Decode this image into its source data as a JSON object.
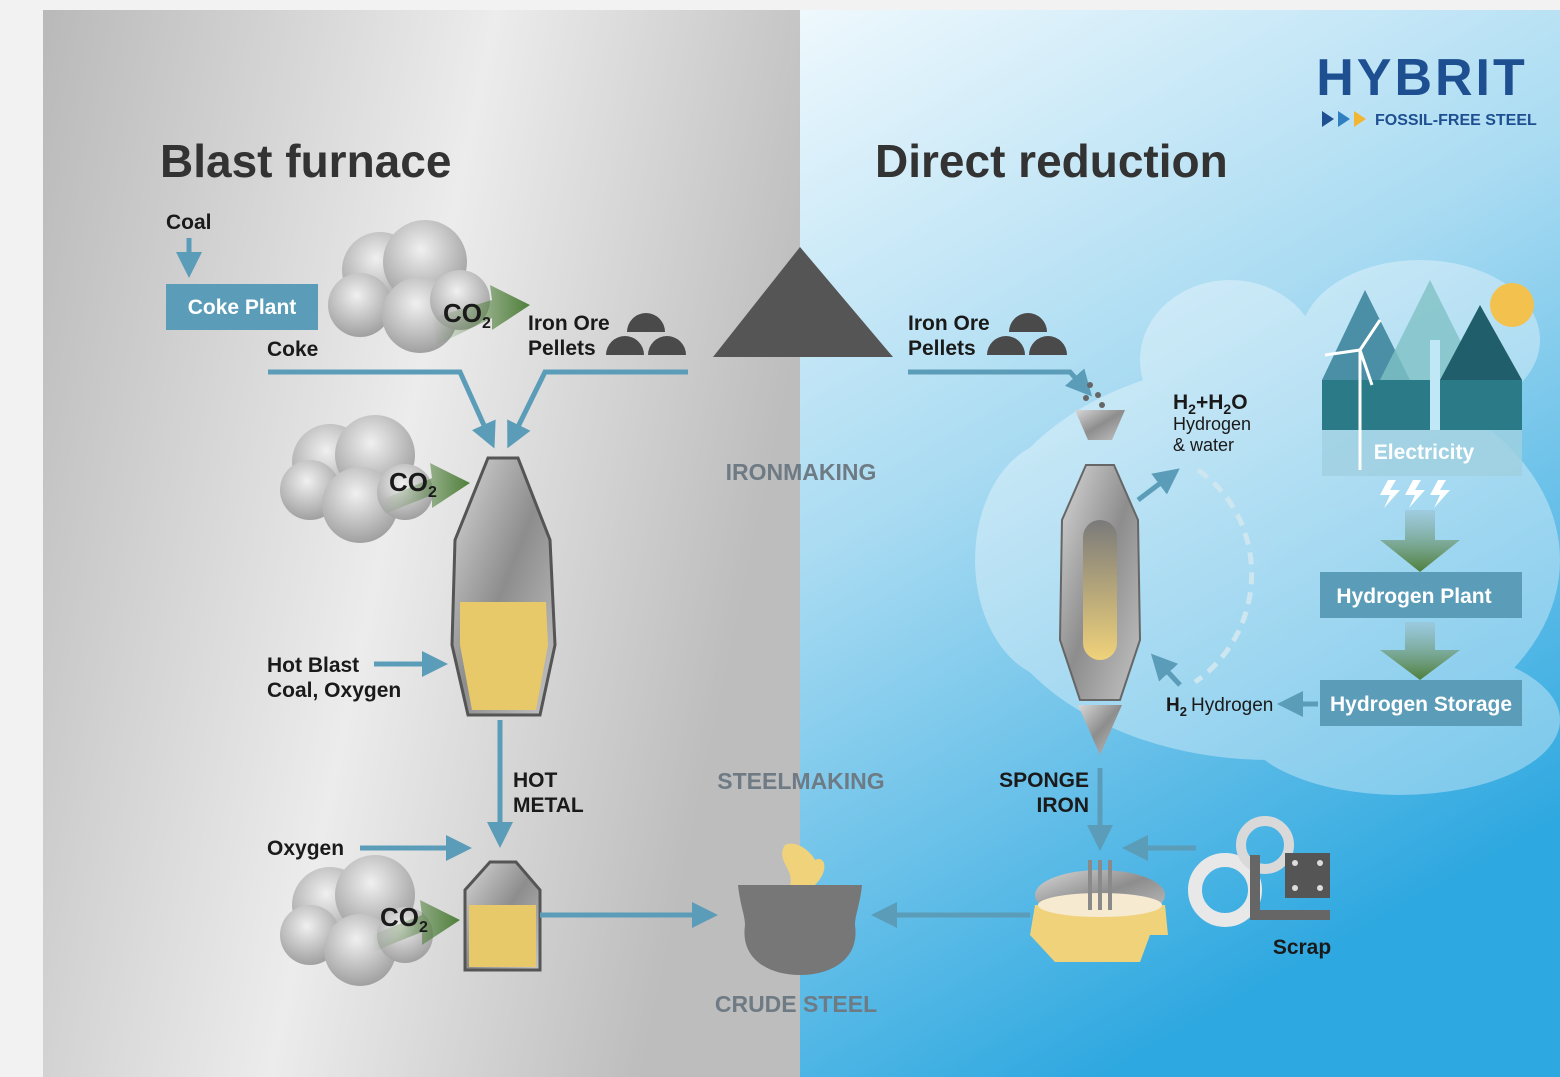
{
  "logo": {
    "name": "HYBRIT",
    "tagline": "FOSSIL-FREE STEEL"
  },
  "blast_furnace": {
    "title": "Blast furnace",
    "coal": "Coal",
    "coke_plant": "Coke Plant",
    "coke": "Coke",
    "iron_ore_pellets": [
      "Iron Ore",
      "Pellets"
    ],
    "co2": [
      {
        "base": "CO",
        "sub": "2"
      },
      {
        "base": "CO",
        "sub": "2"
      },
      {
        "base": "CO",
        "sub": "2"
      }
    ],
    "hot_blast": [
      "Hot Blast",
      "Coal, Oxygen"
    ],
    "hot_metal": [
      "HOT",
      "METAL"
    ],
    "oxygen": "Oxygen"
  },
  "stages": {
    "ironmaking": "IRONMAKING",
    "steelmaking": "STEELMAKING",
    "crude_steel": "CRUDE STEEL"
  },
  "direct_reduction": {
    "title": "Direct reduction",
    "iron_ore_pellets": [
      "Iron Ore",
      "Pellets"
    ],
    "off_gas": {
      "formula": [
        "H",
        "2",
        "+H",
        "2",
        "O"
      ],
      "lines": [
        "Hydrogen",
        "& water"
      ]
    },
    "electricity": "Electricity",
    "hydrogen_plant": "Hydrogen Plant",
    "hydrogen_storage": "Hydrogen Storage",
    "hydrogen_feed": {
      "formula": [
        "H",
        "2"
      ],
      "label": "Hydrogen"
    },
    "sponge_iron": [
      "SPONGE",
      "IRON"
    ],
    "scrap": "Scrap"
  }
}
